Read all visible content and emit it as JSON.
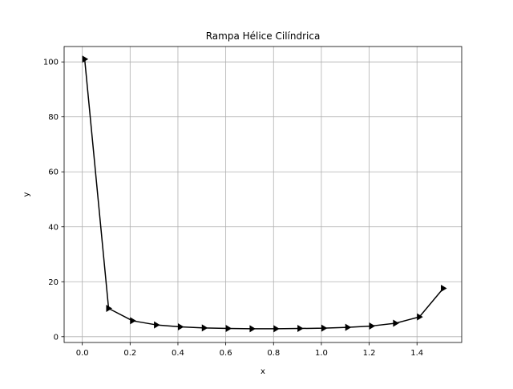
{
  "chart_data": {
    "type": "line",
    "title": "Rampa Hélice Cilíndrica",
    "xlabel": "x",
    "ylabel": "y",
    "xlim": [
      -0.076,
      1.587
    ],
    "ylim": [
      -2.1,
      105.6
    ],
    "x_ticks": [
      "0.0",
      "0.2",
      "0.4",
      "0.6",
      "0.8",
      "1.0",
      "1.2",
      "1.4"
    ],
    "y_ticks": [
      "0",
      "20",
      "40",
      "60",
      "80",
      "100"
    ],
    "grid": true,
    "legend": "none",
    "marker": "triangle-right",
    "line_color": "#000000",
    "grid_color": "#b0b0b0",
    "series": [
      {
        "x": [
          0.01,
          0.11,
          0.21,
          0.31,
          0.41,
          0.51,
          0.61,
          0.71,
          0.81,
          0.91,
          1.01,
          1.11,
          1.21,
          1.31,
          1.41,
          1.51
        ],
        "values": [
          101.0,
          10.3,
          5.8,
          4.3,
          3.6,
          3.2,
          3.0,
          2.9,
          2.9,
          3.0,
          3.1,
          3.4,
          3.9,
          4.9,
          7.2,
          17.6
        ]
      }
    ]
  }
}
